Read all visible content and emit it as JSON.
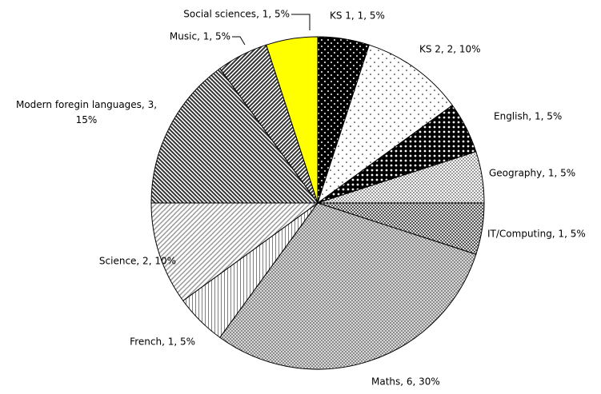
{
  "chart_data": {
    "type": "pie",
    "values": [
      1,
      2,
      1,
      1,
      1,
      6,
      1,
      2,
      3,
      1,
      1
    ],
    "value_labels": [
      "KS 1, 1, 5%",
      "KS 2, 2, 10%",
      "English, 1, 5%",
      "Geography, 1, 5%",
      "IT/Computing, 1, 5%",
      "Maths, 6, 30%",
      "French, 1, 5%",
      "Science, 2, 10%",
      "Modern foregin languages, 3, 15%",
      "Music, 1, 5%",
      "Social sciences, 1, 5%"
    ]
  }
}
